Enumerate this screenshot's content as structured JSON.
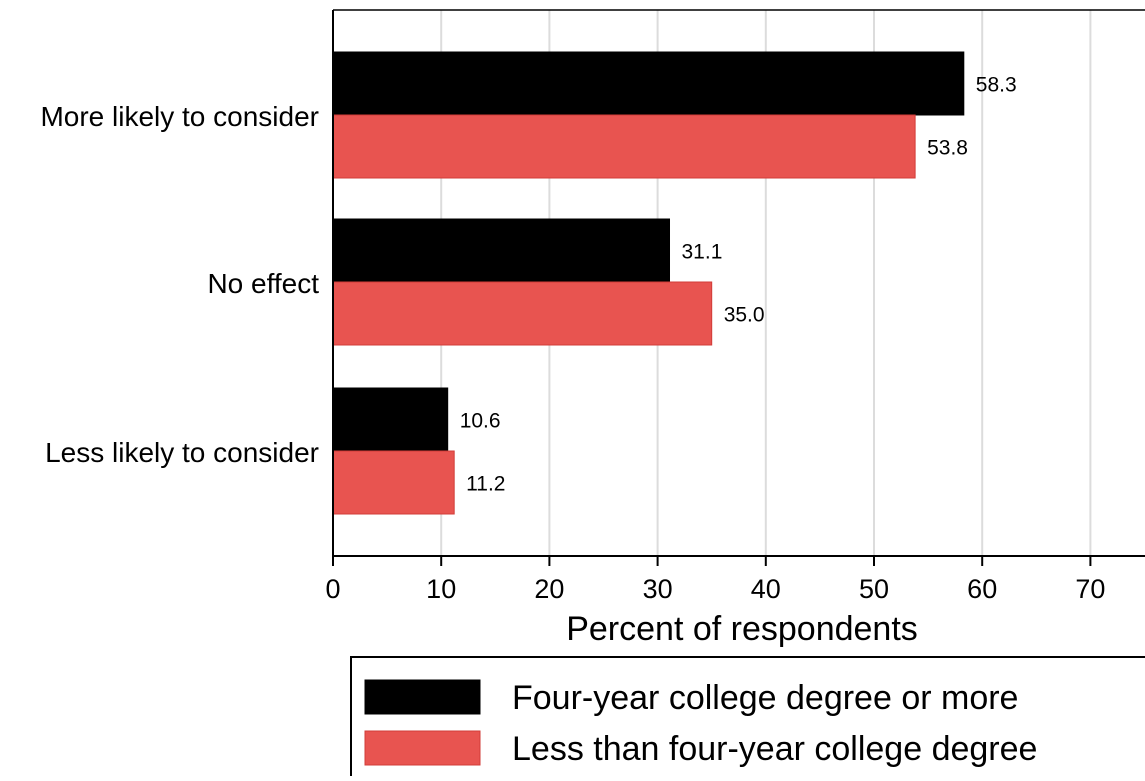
{
  "chart_data": {
    "type": "bar",
    "orientation": "horizontal",
    "categories": [
      "More likely to consider",
      "No effect",
      "Less likely to consider"
    ],
    "series": [
      {
        "name": "Four-year college degree or more",
        "values": [
          58.3,
          31.1,
          10.6
        ],
        "labels": [
          "58.3",
          "31.1",
          "10.6"
        ],
        "color": "#000000"
      },
      {
        "name": "Less than four-year college degree",
        "values": [
          53.8,
          35.0,
          11.2
        ],
        "labels": [
          "53.8",
          "35.0",
          "11.2"
        ],
        "color": "#e85450"
      }
    ],
    "xlabel": "Percent of respondents",
    "ylabel": "",
    "xlim": [
      0,
      75
    ],
    "xticks": [
      "0",
      "10",
      "20",
      "30",
      "40",
      "50",
      "60",
      "70"
    ],
    "grid": true,
    "legend_position": "bottom"
  }
}
